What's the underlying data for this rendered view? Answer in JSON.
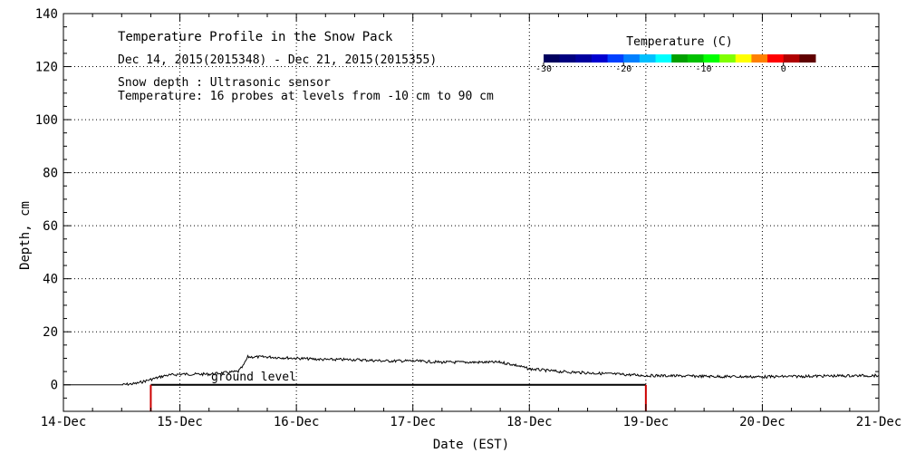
{
  "chart_data": {
    "type": "line",
    "title": "Temperature Profile in the Snow Pack",
    "subtitle": "Dec 14, 2015(2015348) - Dec 21, 2015(2015355)",
    "notes": [
      "Snow depth : Ultrasonic sensor",
      "Temperature: 16 probes at levels from -10 cm to 90 cm"
    ],
    "xlabel": "Date (EST)",
    "ylabel": "Depth, cm",
    "xlim": [
      "2015-12-14",
      "2015-12-21"
    ],
    "ylim": [
      -10,
      140
    ],
    "xticks": [
      "2015-12-14",
      "2015-12-15",
      "2015-12-16",
      "2015-12-17",
      "2015-12-18",
      "2015-12-19",
      "2015-12-20",
      "2015-12-21"
    ],
    "xtick_labels": [
      "14-Dec",
      "15-Dec",
      "16-Dec",
      "17-Dec",
      "18-Dec",
      "19-Dec",
      "20-Dec",
      "21-Dec"
    ],
    "yticks": [
      0,
      20,
      40,
      60,
      80,
      100,
      120,
      140
    ],
    "ytick_labels": [
      "0",
      "20",
      "40",
      "60",
      "80",
      "100",
      "120",
      "140"
    ],
    "grid": "dotted",
    "annotation": "ground level",
    "ground_level": 0,
    "series": [
      {
        "color": "#000000",
        "x": [
          "2015-12-14 00:00",
          "2015-12-14 06:00",
          "2015-12-14 09:00",
          "2015-12-14 12:00",
          "2015-12-14 15:00",
          "2015-12-14 18:00",
          "2015-12-14 21:00",
          "2015-12-15 00:00",
          "2015-12-15 06:00",
          "2015-12-15 09:00",
          "2015-12-15 12:00",
          "2015-12-15 13:00",
          "2015-12-15 14:00",
          "2015-12-15 18:00",
          "2015-12-16 00:00",
          "2015-12-16 06:00",
          "2015-12-16 12:00",
          "2015-12-16 18:00",
          "2015-12-17 00:00",
          "2015-12-17 06:00",
          "2015-12-17 12:00",
          "2015-12-17 18:00",
          "2015-12-17 21:00",
          "2015-12-18 00:00",
          "2015-12-18 06:00",
          "2015-12-18 12:00",
          "2015-12-18 18:00",
          "2015-12-19 00:00",
          "2015-12-19 12:00",
          "2015-12-20 00:00",
          "2015-12-20 12:00",
          "2015-12-21 00:00"
        ],
        "y": [
          0,
          0,
          0,
          0,
          0.5,
          2,
          3.5,
          4,
          4,
          4.5,
          5,
          7,
          10.5,
          10.5,
          10,
          9.5,
          9.5,
          9,
          9,
          8.5,
          8.5,
          8.5,
          7.5,
          6,
          5,
          4.5,
          4,
          3.5,
          3.2,
          3,
          3.3,
          3.5
        ]
      }
    ],
    "markers": [
      {
        "x": "2015-12-14 18:00",
        "color": "#cc0000"
      },
      {
        "x": "2015-12-19 00:00",
        "color": "#cc0000"
      }
    ],
    "colorbar": {
      "label": "Temperature (C)",
      "ticks": [
        "-30",
        "-20",
        "-10",
        "0"
      ],
      "tick_values": [
        -30,
        -20,
        -10,
        0
      ],
      "range": [
        -30,
        4
      ],
      "colors": [
        "#00005e",
        "#000080",
        "#00009f",
        "#0000d0",
        "#0040ff",
        "#0080ff",
        "#00c0ff",
        "#00ffff",
        "#00a000",
        "#00c000",
        "#00ff00",
        "#80ff00",
        "#ffff00",
        "#ff8000",
        "#ff0000",
        "#b00000",
        "#600000"
      ]
    }
  }
}
